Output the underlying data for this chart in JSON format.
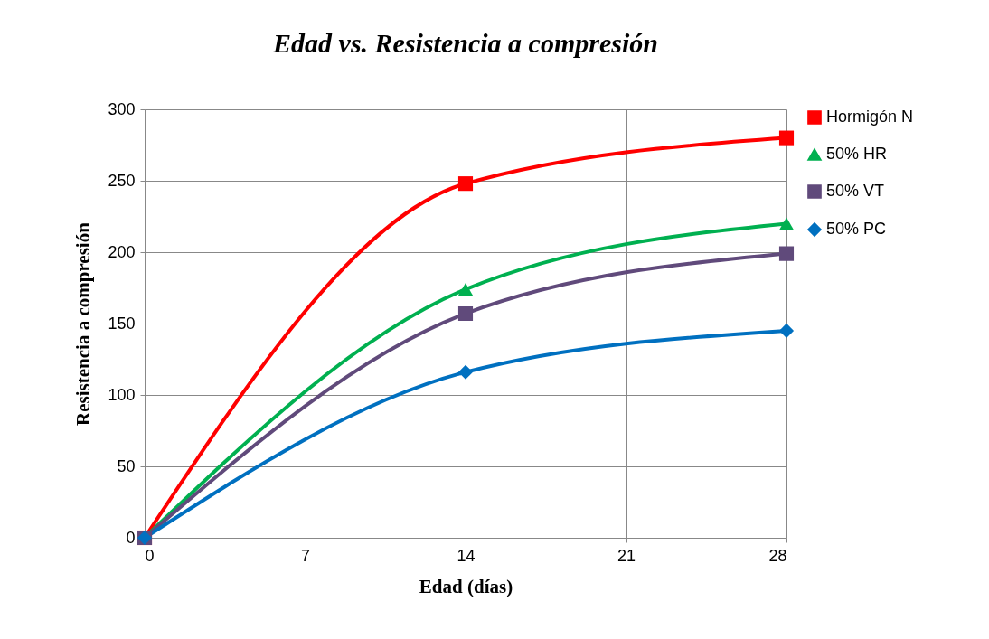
{
  "chart_data": {
    "type": "line",
    "title": "Edad vs. Resistencia a compresión",
    "xlabel": "Edad (días)",
    "ylabel": "Resistencia a compresión",
    "x": [
      0,
      14,
      28
    ],
    "series": [
      {
        "name": "Hormigón N",
        "color": "#ff0000",
        "marker": "square",
        "values": [
          0,
          248,
          280
        ]
      },
      {
        "name": "50% HR",
        "color": "#00b050",
        "marker": "triangle",
        "values": [
          0,
          174,
          220
        ]
      },
      {
        "name": "50% VT",
        "color": "#604a7b",
        "marker": "cross",
        "values": [
          0,
          157,
          199
        ]
      },
      {
        "name": "50% PC",
        "color": "#0070c0",
        "marker": "diamond",
        "values": [
          0,
          116,
          145
        ]
      }
    ],
    "xlim": [
      0,
      28
    ],
    "xticks": [
      0,
      7,
      14,
      21,
      28
    ],
    "ylim": [
      0,
      300
    ],
    "yticks": [
      0,
      50,
      100,
      150,
      200,
      250,
      300
    ],
    "grid": true,
    "legend": "right",
    "line_style": "solid"
  }
}
